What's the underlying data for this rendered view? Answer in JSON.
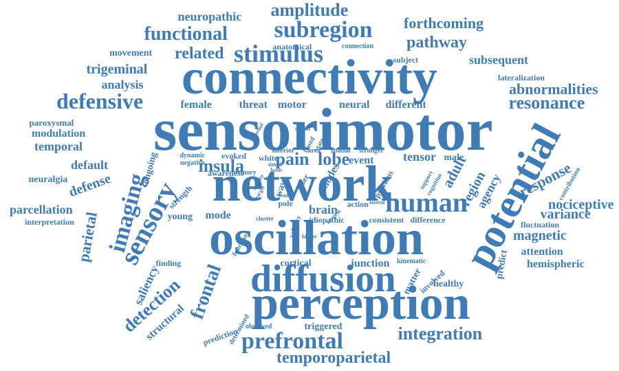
{
  "colors": {
    "text": "#3f7bb5",
    "background": "#ffffff"
  },
  "words": [
    "sensorimotor",
    "connectivity",
    "network",
    "oscillation",
    "perception",
    "diffusion",
    "potential",
    "stimulus",
    "subregion",
    "imaging",
    "sensory",
    "prefrontal",
    "human",
    "integration",
    "temporoparietal",
    "defensive",
    "resonance",
    "abnormalities",
    "functional",
    "amplitude",
    "forthcoming",
    "pathway",
    "related",
    "neuropathic",
    "subsequent",
    "trigeminal",
    "analysis",
    "movement",
    "lateralization",
    "female",
    "threat",
    "motor",
    "neural",
    "different",
    "paroxysmal",
    "modulation",
    "temporal",
    "default",
    "neuralgia",
    "defense",
    "parcellation",
    "interpretation",
    "insula",
    "pain",
    "lobe",
    "event",
    "tensor",
    "adult",
    "region",
    "agency",
    "response",
    "nociceptive",
    "variance",
    "fluctuation",
    "magnetic",
    "attention",
    "hemispheric",
    "predict",
    "male",
    "brain",
    "young",
    "mode",
    "parietal",
    "saliency",
    "detection",
    "frontal",
    "structural",
    "finding",
    "cortical",
    "junction",
    "matter",
    "healthy",
    "triggered",
    "observed",
    "prediction",
    "determined",
    "kinematic",
    "involved",
    "action",
    "consistent",
    "difference",
    "idiopathic",
    "cluster",
    "saliency",
    "strength",
    "ongoing",
    "awareness",
    "memory",
    "dynamic",
    "negative",
    "evoked",
    "white",
    "inferior",
    "area",
    "spatial",
    "stronger",
    "based",
    "state",
    "medial",
    "salient",
    "connection",
    "subject",
    "anatomical",
    "function",
    "wave",
    "target",
    "pole",
    "laser",
    "lead",
    "higher",
    "cognition",
    "support",
    "previous",
    "contribution",
    "modes",
    "timed",
    "basis",
    "activity",
    "lateral",
    "largest",
    "signal",
    "input",
    "load",
    "social",
    "sm"
  ]
}
